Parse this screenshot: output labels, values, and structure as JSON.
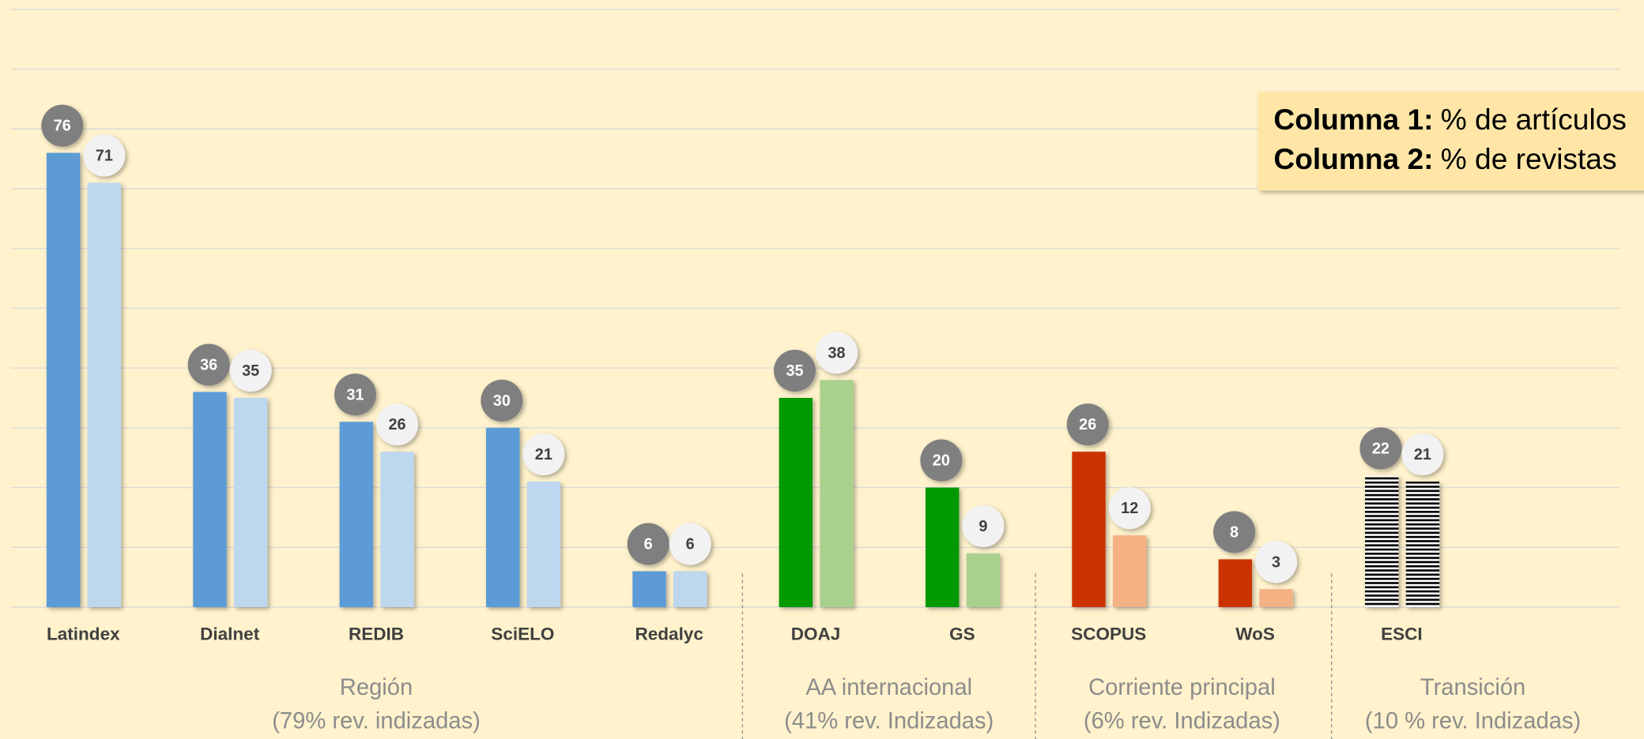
{
  "chart_data": {
    "type": "bar",
    "categories": [
      "Latindex",
      "Dialnet",
      "REDIB",
      "SciELO",
      "Redalyc",
      "DOAJ",
      "GS",
      "SCOPUS",
      "WoS",
      "ESCI"
    ],
    "series": [
      {
        "name": "Columna 1:",
        "description": "% de artículos",
        "colors": [
          "#5b9bd5",
          "#5b9bd5",
          "#5b9bd5",
          "#5b9bd5",
          "#5b9bd5",
          "#009900",
          "#009900",
          "#cc3300",
          "#cc3300",
          "#000000"
        ],
        "values": [
          76,
          36,
          31,
          30,
          6,
          35,
          20,
          26,
          8,
          22
        ]
      },
      {
        "name": "Columna 2:",
        "description": "% de revistas",
        "colors": [
          "#bdd7ee",
          "#bdd7ee",
          "#bdd7ee",
          "#bdd7ee",
          "#bdd7ee",
          "#a9d18e",
          "#a9d18e",
          "#f4b183",
          "#f4b183",
          "#555555"
        ],
        "values": [
          71,
          35,
          26,
          21,
          6,
          38,
          9,
          12,
          3,
          21
        ]
      }
    ],
    "hatched": [
      false,
      false,
      false,
      false,
      false,
      false,
      false,
      false,
      false,
      true
    ],
    "groups": [
      {
        "lines": [
          "Región",
          "(79% rev. indizadas)"
        ],
        "size": 5
      },
      {
        "lines": [
          "AA internacional",
          "(41% rev. Indizadas)"
        ],
        "size": 2
      },
      {
        "lines": [
          "Corriente principal",
          "(6% rev. Indizadas)"
        ],
        "size": 2
      },
      {
        "lines": [
          "Transición",
          "(10 % rev. Indizadas)"
        ],
        "size": 1
      }
    ],
    "ylim": [
      0,
      100
    ],
    "yticks": [
      0,
      10,
      20,
      30,
      40,
      50,
      60,
      70,
      80,
      90,
      100
    ],
    "grid": true,
    "legend": "upper right"
  }
}
